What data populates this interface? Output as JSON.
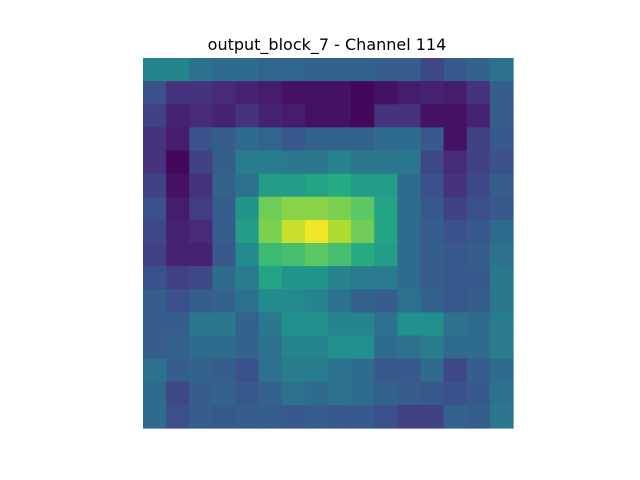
{
  "chart_data": {
    "type": "heatmap",
    "title": "output_block_7 - Channel 114",
    "colormap": "viridis",
    "axes_visible": false,
    "value_range": [
      0,
      1
    ],
    "rows": 16,
    "cols": 16,
    "values": [
      [
        0.45,
        0.45,
        0.38,
        0.35,
        0.35,
        0.33,
        0.33,
        0.32,
        0.32,
        0.32,
        0.3,
        0.3,
        0.22,
        0.28,
        0.32,
        0.38
      ],
      [
        0.25,
        0.15,
        0.15,
        0.12,
        0.1,
        0.08,
        0.05,
        0.05,
        0.05,
        0.02,
        0.05,
        0.08,
        0.1,
        0.08,
        0.15,
        0.3
      ],
      [
        0.2,
        0.1,
        0.12,
        0.1,
        0.15,
        0.1,
        0.08,
        0.05,
        0.05,
        0.02,
        0.15,
        0.15,
        0.05,
        0.05,
        0.1,
        0.3
      ],
      [
        0.15,
        0.08,
        0.25,
        0.3,
        0.35,
        0.33,
        0.28,
        0.32,
        0.32,
        0.32,
        0.35,
        0.35,
        0.28,
        0.05,
        0.2,
        0.28
      ],
      [
        0.15,
        0.02,
        0.2,
        0.3,
        0.42,
        0.42,
        0.4,
        0.4,
        0.45,
        0.4,
        0.4,
        0.4,
        0.22,
        0.12,
        0.2,
        0.25
      ],
      [
        0.2,
        0.05,
        0.15,
        0.32,
        0.38,
        0.55,
        0.55,
        0.58,
        0.62,
        0.55,
        0.55,
        0.35,
        0.25,
        0.15,
        0.22,
        0.3
      ],
      [
        0.25,
        0.08,
        0.18,
        0.3,
        0.52,
        0.78,
        0.82,
        0.82,
        0.8,
        0.75,
        0.58,
        0.35,
        0.28,
        0.2,
        0.25,
        0.28
      ],
      [
        0.22,
        0.1,
        0.12,
        0.3,
        0.55,
        0.8,
        0.92,
        0.98,
        0.88,
        0.78,
        0.58,
        0.35,
        0.3,
        0.25,
        0.28,
        0.35
      ],
      [
        0.2,
        0.1,
        0.1,
        0.28,
        0.48,
        0.68,
        0.7,
        0.75,
        0.7,
        0.62,
        0.55,
        0.35,
        0.3,
        0.28,
        0.3,
        0.38
      ],
      [
        0.25,
        0.2,
        0.22,
        0.35,
        0.42,
        0.58,
        0.52,
        0.52,
        0.45,
        0.42,
        0.42,
        0.35,
        0.3,
        0.28,
        0.28,
        0.4
      ],
      [
        0.3,
        0.25,
        0.3,
        0.32,
        0.38,
        0.48,
        0.48,
        0.45,
        0.38,
        0.32,
        0.3,
        0.38,
        0.32,
        0.28,
        0.3,
        0.4
      ],
      [
        0.3,
        0.3,
        0.4,
        0.4,
        0.32,
        0.4,
        0.5,
        0.5,
        0.45,
        0.45,
        0.38,
        0.5,
        0.5,
        0.38,
        0.35,
        0.42
      ],
      [
        0.3,
        0.32,
        0.35,
        0.35,
        0.32,
        0.38,
        0.45,
        0.45,
        0.5,
        0.5,
        0.35,
        0.38,
        0.42,
        0.35,
        0.35,
        0.42
      ],
      [
        0.38,
        0.3,
        0.32,
        0.3,
        0.25,
        0.38,
        0.42,
        0.42,
        0.38,
        0.35,
        0.28,
        0.28,
        0.35,
        0.22,
        0.3,
        0.35
      ],
      [
        0.35,
        0.22,
        0.3,
        0.32,
        0.28,
        0.32,
        0.38,
        0.35,
        0.38,
        0.35,
        0.32,
        0.3,
        0.28,
        0.25,
        0.28,
        0.38
      ],
      [
        0.35,
        0.25,
        0.3,
        0.28,
        0.3,
        0.3,
        0.28,
        0.3,
        0.28,
        0.28,
        0.25,
        0.2,
        0.2,
        0.32,
        0.3,
        0.4
      ]
    ]
  }
}
